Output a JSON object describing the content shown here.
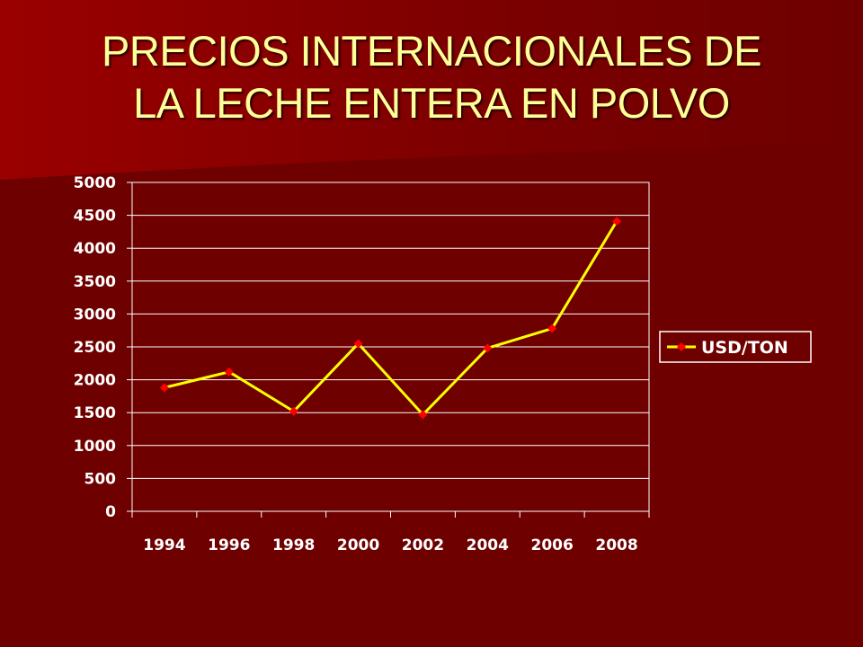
{
  "slide": {
    "title_line1": "PRECIOS INTERNACIONALES DE",
    "title_line2": "LA LECHE ENTERA EN POLVO"
  },
  "colors": {
    "background": "#6e0000",
    "title": "#ffff99",
    "line": "#ffff00",
    "marker": "#ff0000",
    "grid": "#ffffff",
    "legend_bg": "#6e0000"
  },
  "chart_data": {
    "type": "line",
    "title": "PRECIOS INTERNACIONALES DE LA LECHE ENTERA EN POLVO",
    "xlabel": "",
    "ylabel": "",
    "categories": [
      "1994",
      "1996",
      "1998",
      "2000",
      "2002",
      "2004",
      "2006",
      "2008"
    ],
    "series": [
      {
        "name": "USD/TON",
        "values": [
          1880,
          2120,
          1520,
          2550,
          1470,
          2480,
          2780,
          4410
        ]
      }
    ],
    "ylim": [
      0,
      5000
    ],
    "yticks": [
      0,
      500,
      1000,
      1500,
      2000,
      2500,
      3000,
      3500,
      4000,
      4500,
      5000
    ],
    "grid": true,
    "legend_position": "right"
  }
}
